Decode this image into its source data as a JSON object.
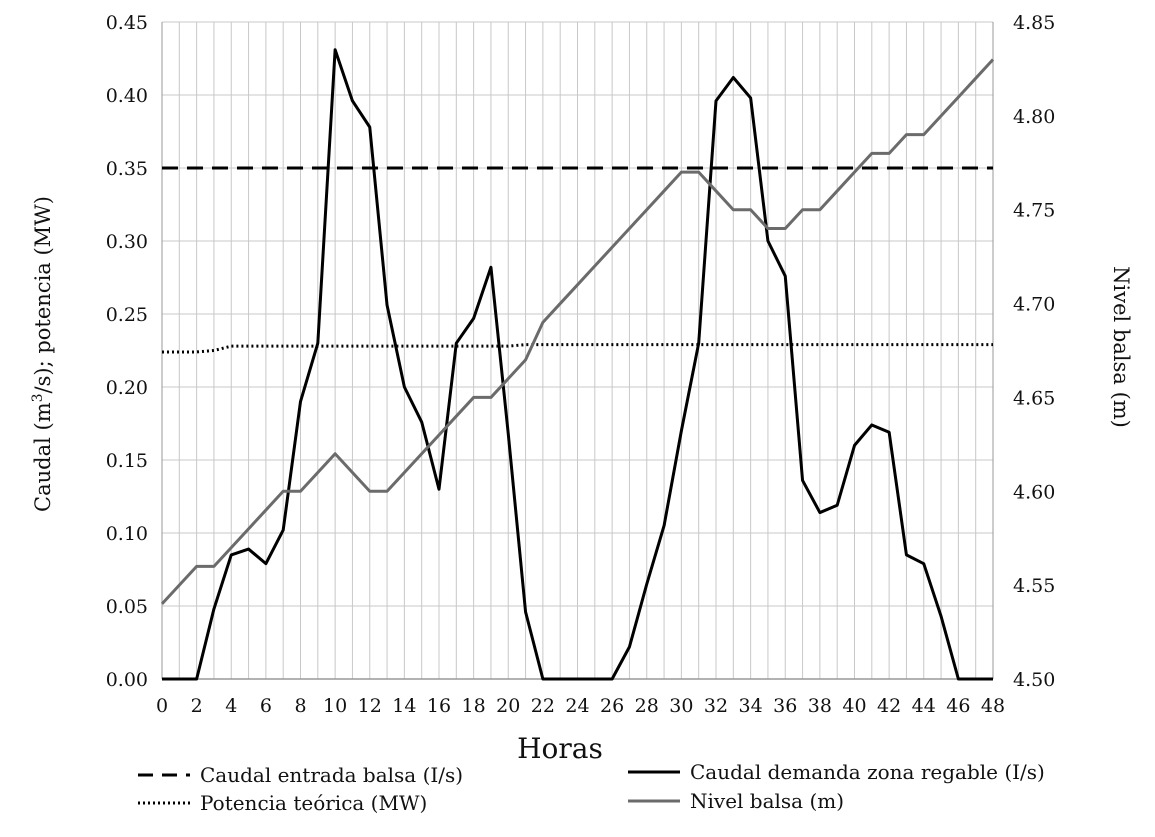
{
  "chart_data": {
    "type": "line",
    "xlabel": "Horas",
    "ylabel_left_parts": [
      "Caudal (m",
      "3",
      "/s); potencia (MW)"
    ],
    "ylabel_right": "Nivel balsa (m)",
    "x": [
      0,
      1,
      2,
      3,
      4,
      5,
      6,
      7,
      8,
      9,
      10,
      11,
      12,
      13,
      14,
      15,
      16,
      17,
      18,
      19,
      20,
      21,
      22,
      23,
      24,
      25,
      26,
      27,
      28,
      29,
      30,
      31,
      32,
      33,
      34,
      35,
      36,
      37,
      38,
      39,
      40,
      41,
      42,
      43,
      44,
      45,
      46,
      47,
      48
    ],
    "xlim": [
      0,
      48
    ],
    "xticks": [
      0,
      2,
      4,
      6,
      8,
      10,
      12,
      14,
      16,
      18,
      20,
      22,
      24,
      26,
      28,
      30,
      32,
      34,
      36,
      38,
      40,
      42,
      44,
      46,
      48
    ],
    "xtick_labels": [
      "0",
      "2",
      "4",
      "6",
      "8",
      "10",
      "12",
      "14",
      "16",
      "18",
      "20",
      "22",
      "24",
      "26",
      "28",
      "30",
      "32",
      "34",
      "36",
      "38",
      "40",
      "42",
      "44",
      "46",
      "48"
    ],
    "ylim_left": [
      0,
      0.45
    ],
    "yticks_left": [
      "0.00",
      "0.05",
      "0.10",
      "0.15",
      "0.20",
      "0.25",
      "0.30",
      "0.35",
      "0.40",
      "0.45"
    ],
    "ylim_right": [
      4.5,
      4.85
    ],
    "yticks_right": [
      "4.50",
      "4.55",
      "4.60",
      "4.65",
      "4.70",
      "4.75",
      "4.80",
      "4.85"
    ],
    "grid": true,
    "series": [
      {
        "name": "Caudal entrada balsa (I/s)",
        "axis": "left",
        "style": "dashed",
        "color": "#000000",
        "values": [
          0.35,
          0.35,
          0.35,
          0.35,
          0.35,
          0.35,
          0.35,
          0.35,
          0.35,
          0.35,
          0.35,
          0.35,
          0.35,
          0.35,
          0.35,
          0.35,
          0.35,
          0.35,
          0.35,
          0.35,
          0.35,
          0.35,
          0.35,
          0.35,
          0.35,
          0.35,
          0.35,
          0.35,
          0.35,
          0.35,
          0.35,
          0.35,
          0.35,
          0.35,
          0.35,
          0.35,
          0.35,
          0.35,
          0.35,
          0.35,
          0.35,
          0.35,
          0.35,
          0.35,
          0.35,
          0.35,
          0.35,
          0.35,
          0.35
        ]
      },
      {
        "name": "Potencia teórica (MW)",
        "axis": "left",
        "style": "dotted",
        "color": "#000000",
        "values": [
          0.224,
          0.224,
          0.224,
          0.225,
          0.228,
          0.228,
          0.228,
          0.228,
          0.228,
          0.228,
          0.228,
          0.228,
          0.228,
          0.228,
          0.228,
          0.228,
          0.228,
          0.228,
          0.228,
          0.228,
          0.228,
          0.229,
          0.229,
          0.229,
          0.229,
          0.229,
          0.229,
          0.229,
          0.229,
          0.229,
          0.229,
          0.229,
          0.229,
          0.229,
          0.229,
          0.229,
          0.229,
          0.229,
          0.229,
          0.229,
          0.229,
          0.229,
          0.229,
          0.229,
          0.229,
          0.229,
          0.229,
          0.229,
          0.229
        ]
      },
      {
        "name": "Caudal demanda zona regable (I/s)",
        "axis": "left",
        "style": "solid",
        "color": "#000000",
        "values": [
          0,
          0,
          0,
          0.048,
          0.085,
          0.089,
          0.079,
          0.102,
          0.19,
          0.23,
          0.431,
          0.396,
          0.378,
          0.256,
          0.2,
          0.176,
          0.13,
          0.23,
          0.247,
          0.282,
          0.168,
          0.046,
          0,
          0,
          0,
          0,
          0,
          0.022,
          0.065,
          0.105,
          0.17,
          0.23,
          0.396,
          0.412,
          0.398,
          0.3,
          0.276,
          0.136,
          0.114,
          0.119,
          0.16,
          0.174,
          0.169,
          0.085,
          0.079,
          0.043,
          0,
          0,
          0
        ]
      },
      {
        "name": "Nivel balsa (m)",
        "axis": "right",
        "style": "solid",
        "color": "#6b6b6b",
        "values": [
          4.54,
          4.55,
          4.56,
          4.56,
          4.57,
          4.58,
          4.59,
          4.6,
          4.6,
          4.61,
          4.62,
          4.61,
          4.6,
          4.6,
          4.61,
          4.62,
          4.63,
          4.64,
          4.65,
          4.65,
          4.66,
          4.67,
          4.69,
          4.7,
          4.71,
          4.72,
          4.73,
          4.74,
          4.75,
          4.76,
          4.77,
          4.77,
          4.76,
          4.75,
          4.75,
          4.74,
          4.74,
          4.75,
          4.75,
          4.76,
          4.77,
          4.78,
          4.78,
          4.79,
          4.79,
          4.8,
          4.81,
          4.82,
          4.83
        ]
      }
    ],
    "legend": {
      "placement": "bottom",
      "items": [
        {
          "label": "Caudal entrada balsa (I/s)",
          "style": "dashed",
          "color": "#000000"
        },
        {
          "label": "Caudal demanda zona regable (I/s)",
          "style": "solid",
          "color": "#000000"
        },
        {
          "label": "Potencia teórica (MW)",
          "style": "dotted",
          "color": "#000000"
        },
        {
          "label": "Nivel balsa (m)",
          "style": "solid",
          "color": "#6b6b6b"
        }
      ]
    },
    "colors": {
      "grid": "#c8c8c8",
      "axis": "#999999"
    }
  }
}
